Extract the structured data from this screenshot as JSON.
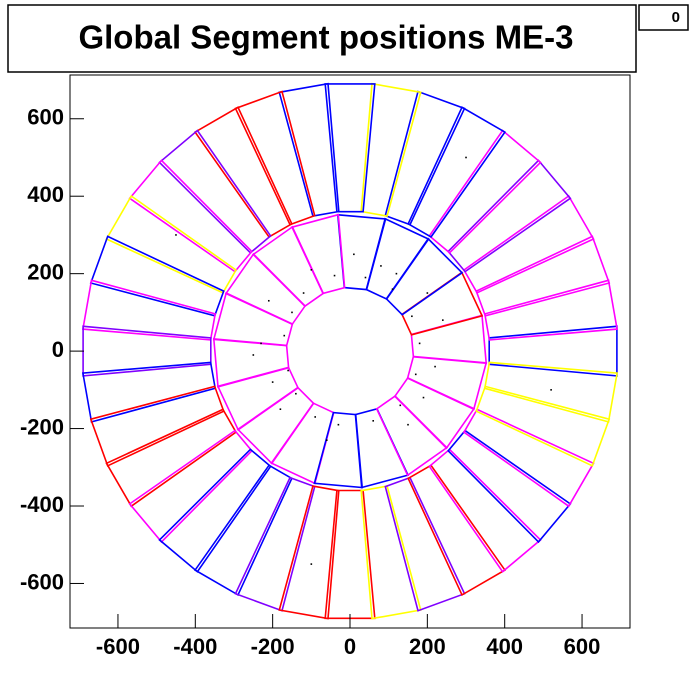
{
  "chart_data": {
    "type": "scatter",
    "title": "Global Segment positions ME-3",
    "stats_label": "0",
    "xlim": [
      -724,
      724
    ],
    "ylim": [
      -715,
      713
    ],
    "xticks": [
      -600,
      -400,
      -200,
      0,
      200,
      400,
      600
    ],
    "yticks": [
      -600,
      -400,
      -200,
      0,
      200,
      400,
      600
    ],
    "points": {
      "color": "#000000",
      "x": [
        -150,
        -120,
        -170,
        -160,
        -140,
        -90,
        -30,
        60,
        130,
        170,
        180,
        160,
        110,
        40,
        -40,
        -200,
        -210,
        150,
        190,
        -100,
        220,
        -230,
        80,
        -60,
        120,
        -180,
        200,
        10,
        -250,
        240,
        300,
        -450,
        520,
        -100
      ],
      "y": [
        100,
        150,
        40,
        -50,
        -110,
        -170,
        -190,
        -180,
        -140,
        -60,
        20,
        90,
        160,
        190,
        195,
        -80,
        130,
        -190,
        -120,
        210,
        -40,
        20,
        220,
        -230,
        200,
        -150,
        150,
        250,
        -10,
        80,
        500,
        300,
        -100,
        -550
      ]
    },
    "rings": [
      {
        "r_min": 162,
        "r_max": 348,
        "half_width_min": 29,
        "half_width_max": 62,
        "phi": [
          5,
          25,
          45,
          65,
          85,
          105,
          125,
          145,
          165,
          185,
          205,
          225,
          245,
          265,
          285,
          305,
          325,
          345
        ],
        "colors": [
          "#ff00ff",
          "#ff0000",
          "#0000ff",
          "#0000ff",
          "#0000ff",
          "#ff00ff",
          "#ff00ff",
          "#ff00ff",
          "#ff00ff",
          "#ff00ff",
          "#ff00ff",
          "#ff00ff",
          "#ff00ff",
          "#0000ff",
          "#0000ff",
          "#ff00ff",
          "#ff00ff",
          "#ff00ff"
        ]
      },
      {
        "r_min": 360,
        "r_max": 690,
        "half_width_min": 34,
        "half_width_max": 64,
        "phi": [
          0,
          10,
          20,
          30,
          40,
          50,
          60,
          70,
          80,
          90,
          100,
          110,
          120,
          130,
          140,
          150,
          160,
          170,
          180,
          190,
          200,
          210,
          220,
          230,
          240,
          250,
          260,
          270,
          280,
          290,
          300,
          310,
          320,
          330,
          340,
          350
        ],
        "colors": [
          "#0000ff",
          "#ff00ff",
          "#ff00ff",
          "#ff00ff",
          "#8000ff",
          "#ff00ff",
          "#0000ff",
          "#0000ff",
          "#ffff00",
          "#0000ff",
          "#0000ff",
          "#ff0000",
          "#ff0000",
          "#8000ff",
          "#ff00ff",
          "#ffff00",
          "#0000ff",
          "#ff00ff",
          "#8000ff",
          "#0000ff",
          "#ff0000",
          "#ff0000",
          "#ff00ff",
          "#0000ff",
          "#0000ff",
          "#8000ff",
          "#ff0000",
          "#ff0000",
          "#ffff00",
          "#8000ff",
          "#ff0000",
          "#ff00ff",
          "#0000ff",
          "#ff00ff",
          "#ffff00",
          "#ffff00"
        ]
      }
    ]
  }
}
